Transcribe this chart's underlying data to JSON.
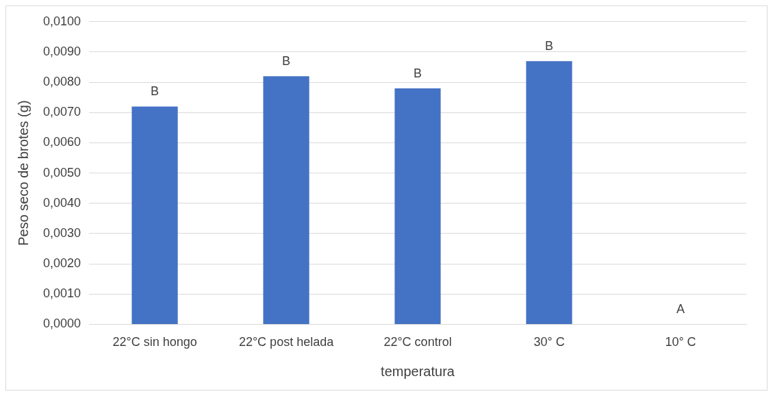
{
  "chart_data": {
    "type": "bar",
    "xlabel": "temperatura",
    "ylabel": "Peso seco de brotes (g)",
    "categories": [
      "22°C sin hongo",
      "22°C post helada",
      "22°C control",
      "30° C",
      "10° C"
    ],
    "values": [
      0.0072,
      0.0082,
      0.0078,
      0.0087,
      0
    ],
    "color": "#4472c4",
    "ylim": [
      0,
      0.01
    ],
    "yticks": [
      {
        "value": 0,
        "label": "0,0000"
      },
      {
        "value": 0.001,
        "label": "0,0010"
      },
      {
        "value": 0.002,
        "label": "0,0020"
      },
      {
        "value": 0.003,
        "label": "0,0030"
      },
      {
        "value": 0.004,
        "label": "0,0040"
      },
      {
        "value": 0.005,
        "label": "0,0050"
      },
      {
        "value": 0.006,
        "label": "0,0060"
      },
      {
        "value": 0.007,
        "label": "0,0070"
      },
      {
        "value": 0.008,
        "label": "0,0080"
      },
      {
        "value": 0.009,
        "label": "0,0090"
      },
      {
        "value": 0.01,
        "label": "0,0100"
      }
    ],
    "grid": "y",
    "legend": false,
    "annotations": [
      {
        "text": "B",
        "x": "22°C sin hongo",
        "y": 0.0072
      },
      {
        "text": "B",
        "x": "22°C post helada",
        "y": 0.0082
      },
      {
        "text": "B",
        "x": "22°C control",
        "y": 0.0078
      },
      {
        "text": "B",
        "x": "30° C",
        "y": 0.0087
      },
      {
        "text": "A",
        "x": "10° C",
        "y": 0
      }
    ]
  }
}
